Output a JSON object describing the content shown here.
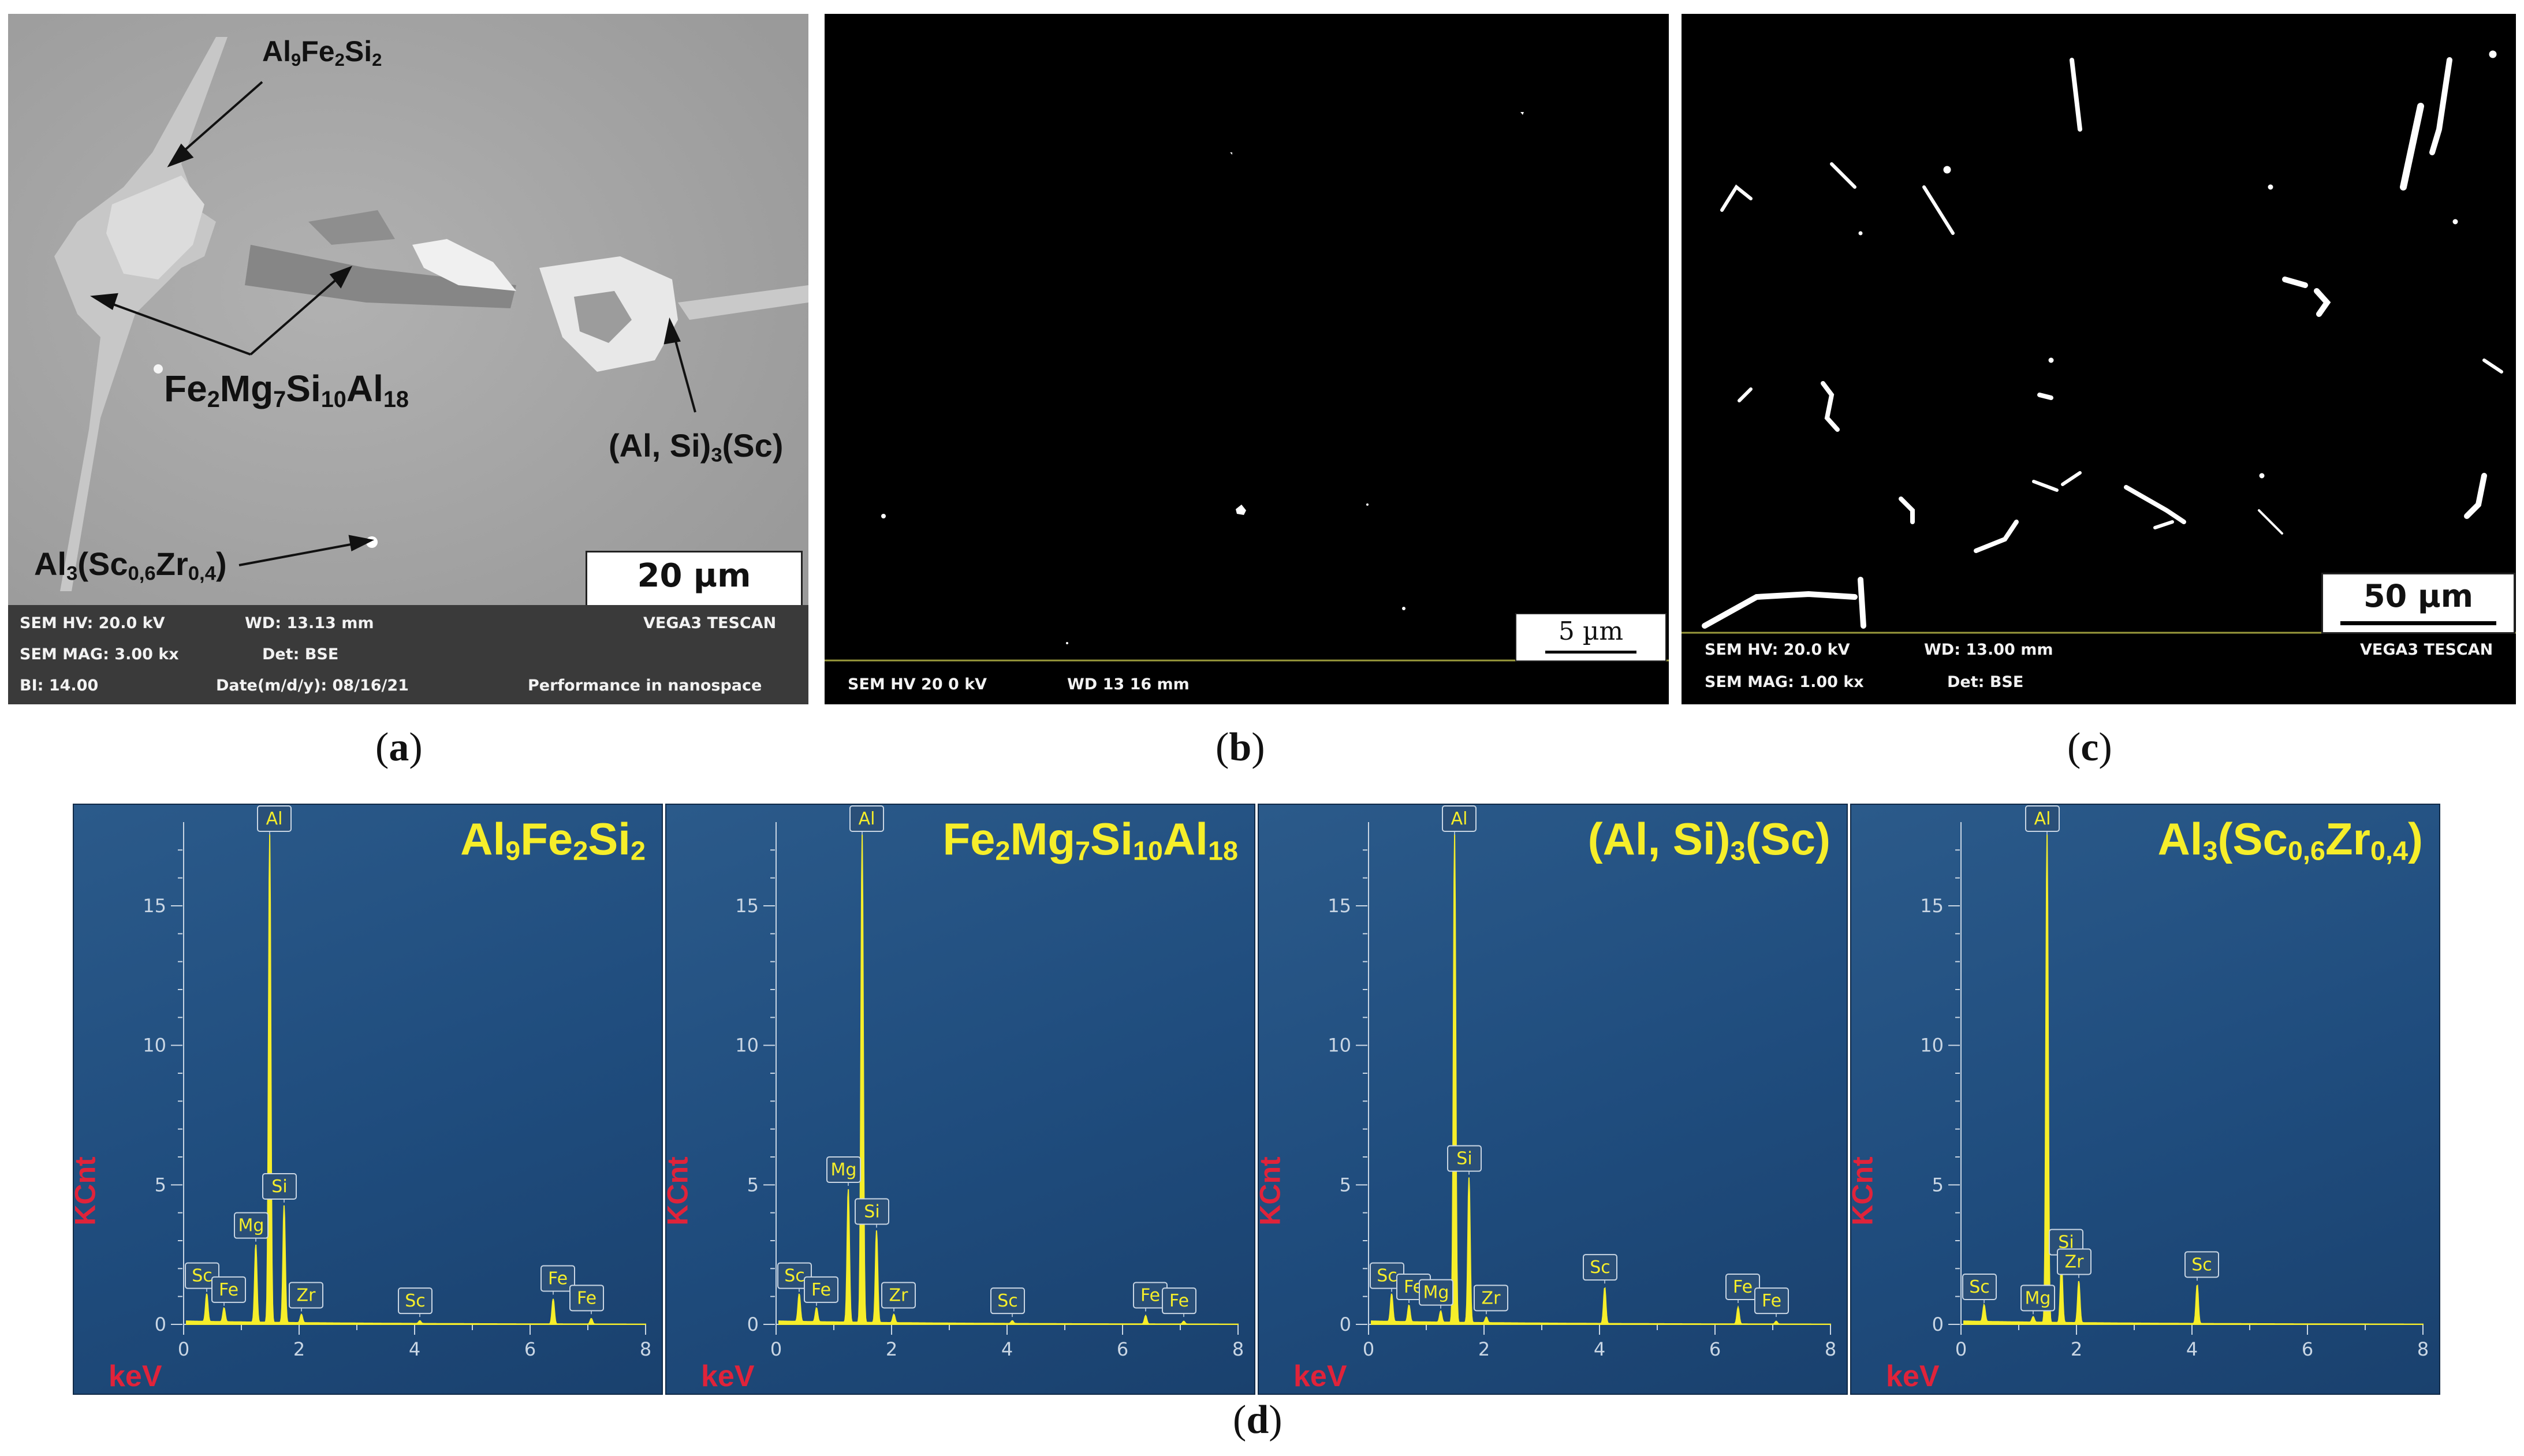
{
  "panel_labels": {
    "a": "a",
    "b": "b",
    "c": "c",
    "d": "d"
  },
  "panel_a": {
    "annotations": {
      "al9fe2si2": {
        "t1": "Al",
        "s1": "9",
        "t2": "Fe",
        "s2": "2",
        "t3": "Si",
        "s3": "2"
      },
      "fe2mg7si10al18": {
        "t1": "Fe",
        "s1": "2",
        "t2": "Mg",
        "s2": "7",
        "t3": "Si",
        "s3": "10",
        "t4": "Al",
        "s4": "18"
      },
      "alsi3sc": {
        "t1": "(Al, Si)",
        "s1": "3",
        "t2": "(Sc)"
      },
      "al3sczr": {
        "t1": "Al",
        "s1": "3",
        "t2": "(Sc",
        "s2": "0,6",
        "t3": "Zr",
        "s3": "0,4",
        "t4": ")"
      }
    },
    "scale_bar": "20 µm",
    "infobar": {
      "hv": "SEM HV: 20.0 kV",
      "wd": "WD: 13.13 mm",
      "brand": "VEGA3 TESCAN",
      "mag": "SEM MAG: 3.00 kx",
      "det": "Det: BSE",
      "bi": "BI: 14.00",
      "date": "Date(m/d/y): 08/16/21",
      "slogan": "Performance in nanospace"
    }
  },
  "panel_b": {
    "scale_bar": "5 µm",
    "infobar": {
      "hv": "SEM HV  20 0 kV",
      "wd": "WD  13 16 mm"
    }
  },
  "panel_c": {
    "scale_bar": "50 µm",
    "infobar": {
      "hv": "SEM HV: 20.0 kV",
      "wd": "WD: 13.00 mm",
      "brand": "VEGA3 TESCAN",
      "mag": "SEM MAG: 1.00 kx",
      "det": "Det: BSE"
    }
  },
  "chart_data": [
    {
      "type": "line",
      "title_parts": {
        "t1": "Al",
        "s1": "9",
        "t2": "Fe",
        "s2": "2",
        "t3": "Si",
        "s3": "2"
      },
      "xlabel": "keV",
      "ylabel": "KCnt",
      "xlim": [
        0,
        8
      ],
      "ylim": [
        0,
        18
      ],
      "x_ticks": [
        0,
        2,
        4,
        6,
        8
      ],
      "y_ticks": [
        0,
        5,
        10,
        15
      ],
      "peaks": [
        {
          "label": "Sc",
          "x": 0.4,
          "y": 1.0
        },
        {
          "label": "Fe",
          "x": 0.7,
          "y": 0.5
        },
        {
          "label": "Mg",
          "x": 1.25,
          "y": 2.8
        },
        {
          "label": "Al",
          "x": 1.49,
          "y": 17.5
        },
        {
          "label": "Si",
          "x": 1.74,
          "y": 4.2
        },
        {
          "label": "Zr",
          "x": 2.04,
          "y": 0.3
        },
        {
          "label": "Sc",
          "x": 4.09,
          "y": 0.1
        },
        {
          "label": "Fe",
          "x": 6.4,
          "y": 0.9
        },
        {
          "label": "Fe",
          "x": 7.06,
          "y": 0.2
        }
      ]
    },
    {
      "type": "line",
      "title_parts": {
        "t1": "Fe",
        "s1": "2",
        "t2": "Mg",
        "s2": "7",
        "t3": "Si",
        "s3": "10",
        "t4": "Al",
        "s4": "18"
      },
      "xlabel": "keV",
      "ylabel": "KCnt",
      "xlim": [
        0,
        8
      ],
      "ylim": [
        0,
        18
      ],
      "x_ticks": [
        0,
        2,
        4,
        6,
        8
      ],
      "y_ticks": [
        0,
        5,
        10,
        15
      ],
      "peaks": [
        {
          "label": "Sc",
          "x": 0.4,
          "y": 1.0
        },
        {
          "label": "Fe",
          "x": 0.7,
          "y": 0.5
        },
        {
          "label": "Mg",
          "x": 1.25,
          "y": 4.8
        },
        {
          "label": "Al",
          "x": 1.49,
          "y": 17.5
        },
        {
          "label": "Si",
          "x": 1.74,
          "y": 3.3
        },
        {
          "label": "Zr",
          "x": 2.04,
          "y": 0.3
        },
        {
          "label": "Sc",
          "x": 4.09,
          "y": 0.1
        },
        {
          "label": "Fe",
          "x": 6.4,
          "y": 0.3
        },
        {
          "label": "Fe",
          "x": 7.06,
          "y": 0.1
        }
      ]
    },
    {
      "type": "line",
      "title_parts": {
        "t1": "(Al, Si)",
        "s1": "3",
        "t2": "(Sc)"
      },
      "xlabel": "keV",
      "ylabel": "KCnt",
      "xlim": [
        0,
        8
      ],
      "ylim": [
        0,
        18
      ],
      "x_ticks": [
        0,
        2,
        4,
        6,
        8
      ],
      "y_ticks": [
        0,
        5,
        10,
        15
      ],
      "peaks": [
        {
          "label": "Sc",
          "x": 0.4,
          "y": 1.0
        },
        {
          "label": "Fe",
          "x": 0.7,
          "y": 0.6
        },
        {
          "label": "Mg",
          "x": 1.25,
          "y": 0.4
        },
        {
          "label": "Al",
          "x": 1.49,
          "y": 17.5
        },
        {
          "label": "Si",
          "x": 1.74,
          "y": 5.2
        },
        {
          "label": "Zr",
          "x": 2.04,
          "y": 0.2
        },
        {
          "label": "Sc",
          "x": 4.09,
          "y": 1.3
        },
        {
          "label": "Fe",
          "x": 6.4,
          "y": 0.6
        },
        {
          "label": "Fe",
          "x": 7.06,
          "y": 0.1
        }
      ]
    },
    {
      "type": "line",
      "title_parts": {
        "t1": "Al",
        "s1": "3",
        "t2": "(Sc",
        "s2": "0,6",
        "t3": "Zr",
        "s3": "0,4",
        "t4": ")"
      },
      "xlabel": "keV",
      "ylabel": "KCnt",
      "xlim": [
        0,
        8
      ],
      "ylim": [
        0,
        18
      ],
      "x_ticks": [
        0,
        2,
        4,
        6,
        8
      ],
      "y_ticks": [
        0,
        5,
        10,
        15
      ],
      "peaks": [
        {
          "label": "Sc",
          "x": 0.4,
          "y": 0.6
        },
        {
          "label": "Mg",
          "x": 1.25,
          "y": 0.2
        },
        {
          "label": "Al",
          "x": 1.49,
          "y": 17.5
        },
        {
          "label": "Si",
          "x": 1.74,
          "y": 2.2
        },
        {
          "label": "Zr",
          "x": 2.04,
          "y": 1.5
        },
        {
          "label": "Sc",
          "x": 4.09,
          "y": 1.4
        }
      ]
    }
  ]
}
